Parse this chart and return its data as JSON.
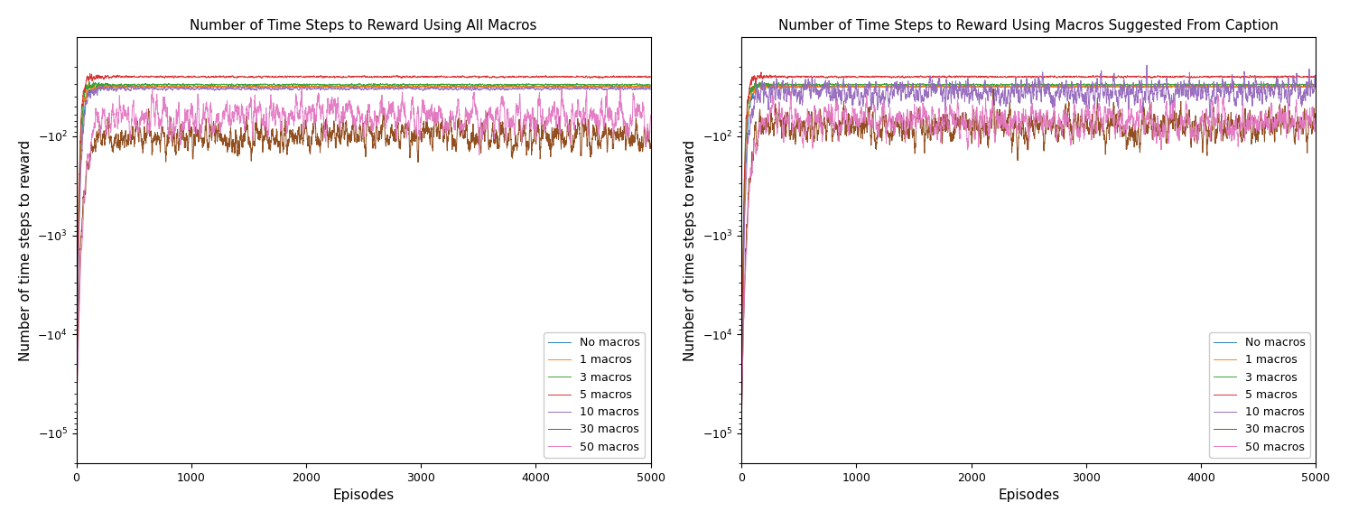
{
  "title_left": "Number of Time Steps to Reward Using All Macros",
  "title_right": "Number of Time Steps to Reward Using Macros Suggested From Caption",
  "xlabel": "Episodes",
  "ylabel": "Number of time steps to reward",
  "n_episodes": 5000,
  "legend_labels": [
    "No macros",
    "1 macros",
    "3 macros",
    "5 macros",
    "10 macros",
    "30 macros",
    "50 macros"
  ],
  "colors": [
    "#1f77b4",
    "#ff7f0e",
    "#2ca02c",
    "#d62728",
    "#9467bd",
    "#8c4513",
    "#e377c2"
  ],
  "left_params": [
    {
      "final_log": 1.5,
      "conv_speed": 25,
      "noise_after": 0.01,
      "noise_during": 0.15,
      "seed": 0
    },
    {
      "final_log": 1.5,
      "conv_speed": 22,
      "noise_after": 0.012,
      "noise_during": 0.15,
      "seed": 1
    },
    {
      "final_log": 1.48,
      "conv_speed": 20,
      "noise_after": 0.01,
      "noise_during": 0.14,
      "seed": 2
    },
    {
      "final_log": 1.4,
      "conv_speed": 20,
      "noise_after": 0.01,
      "noise_during": 0.14,
      "seed": 3
    },
    {
      "final_log": 1.52,
      "conv_speed": 28,
      "noise_after": 0.02,
      "noise_during": 0.16,
      "seed": 4
    },
    {
      "final_log": 2.0,
      "conv_speed": 40,
      "noise_after": 0.3,
      "noise_during": 0.2,
      "seed": 5
    },
    {
      "final_log": 1.8,
      "conv_speed": 50,
      "noise_after": 0.38,
      "noise_during": 0.22,
      "seed": 6
    }
  ],
  "right_params": [
    {
      "final_log": 1.5,
      "conv_speed": 25,
      "noise_after": 0.01,
      "noise_during": 0.15,
      "seed": 10
    },
    {
      "final_log": 1.5,
      "conv_speed": 22,
      "noise_after": 0.012,
      "noise_during": 0.15,
      "seed": 11
    },
    {
      "final_log": 1.48,
      "conv_speed": 20,
      "noise_after": 0.01,
      "noise_during": 0.14,
      "seed": 12
    },
    {
      "final_log": 1.4,
      "conv_speed": 20,
      "noise_after": 0.01,
      "noise_during": 0.14,
      "seed": 13
    },
    {
      "final_log": 1.55,
      "conv_speed": 30,
      "noise_after": 0.2,
      "noise_during": 0.18,
      "seed": 14
    },
    {
      "final_log": 1.9,
      "conv_speed": 40,
      "noise_after": 0.32,
      "noise_during": 0.22,
      "seed": 15
    },
    {
      "final_log": 1.85,
      "conv_speed": 45,
      "noise_after": 0.36,
      "noise_during": 0.22,
      "seed": 16
    }
  ],
  "seed_base": 42
}
